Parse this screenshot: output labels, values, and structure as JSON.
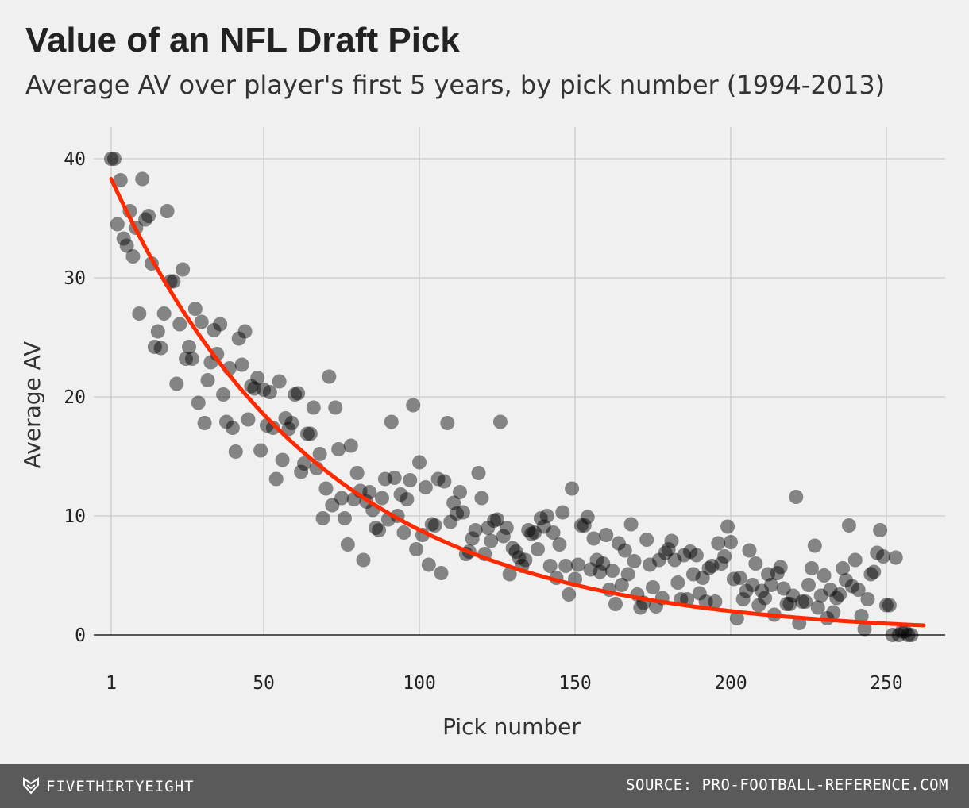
{
  "header": {
    "title": "Value of an NFL Draft Pick",
    "subtitle": "Average AV over player's first 5 years, by pick number (1994-2013)"
  },
  "footer": {
    "brand": "FIVETHIRTYEIGHT",
    "source": "SOURCE: PRO-FOOTBALL-REFERENCE.COM"
  },
  "colors": {
    "background": "#f0f0f0",
    "points": "#000000",
    "trend": "#ff2a00",
    "footer": "#5a5a5a"
  },
  "chart_data": {
    "type": "scatter",
    "title": "Value of an NFL Draft Pick",
    "subtitle": "Average AV over player's first 5 years, by pick number (1994-2013)",
    "xlabel": "Pick number",
    "ylabel": "Average AV",
    "xlim": [
      1,
      262
    ],
    "ylim": [
      0,
      40
    ],
    "xticks": [
      1,
      50,
      100,
      150,
      200,
      250
    ],
    "yticks": [
      0,
      10,
      20,
      30,
      40
    ],
    "grid": true,
    "trend_line": {
      "type": "exponential",
      "start": [
        1,
        38.3
      ],
      "end": [
        262,
        0.8
      ]
    },
    "points": [
      [
        1,
        40
      ],
      [
        2,
        40
      ],
      [
        3,
        34.5
      ],
      [
        4,
        38.2
      ],
      [
        5,
        33.3
      ],
      [
        6,
        32.7
      ],
      [
        7,
        35.6
      ],
      [
        8,
        31.8
      ],
      [
        9,
        34.2
      ],
      [
        10,
        27
      ],
      [
        11,
        38.3
      ],
      [
        12,
        34.9
      ],
      [
        13,
        35.2
      ],
      [
        14,
        31.2
      ],
      [
        15,
        24.2
      ],
      [
        16,
        25.5
      ],
      [
        17,
        24.1
      ],
      [
        18,
        27
      ],
      [
        19,
        35.6
      ],
      [
        20,
        29.7
      ],
      [
        21,
        29.7
      ],
      [
        22,
        21.1
      ],
      [
        23,
        26.1
      ],
      [
        24,
        30.7
      ],
      [
        25,
        23.2
      ],
      [
        26,
        24.2
      ],
      [
        27,
        23.2
      ],
      [
        28,
        27.4
      ],
      [
        29,
        19.5
      ],
      [
        30,
        26.3
      ],
      [
        31,
        17.8
      ],
      [
        32,
        21.4
      ],
      [
        33,
        22.9
      ],
      [
        34,
        25.6
      ],
      [
        35,
        23.6
      ],
      [
        36,
        26.1
      ],
      [
        37,
        20.2
      ],
      [
        38,
        17.9
      ],
      [
        39,
        22.4
      ],
      [
        40,
        17.4
      ],
      [
        41,
        15.4
      ],
      [
        42,
        24.9
      ],
      [
        43,
        22.7
      ],
      [
        44,
        25.5
      ],
      [
        45,
        18.1
      ],
      [
        46,
        20.9
      ],
      [
        47,
        20.7
      ],
      [
        48,
        21.6
      ],
      [
        49,
        15.5
      ],
      [
        50,
        20.6
      ],
      [
        51,
        17.6
      ],
      [
        52,
        20.4
      ],
      [
        53,
        17.4
      ],
      [
        54,
        13.1
      ],
      [
        55,
        21.3
      ],
      [
        56,
        14.7
      ],
      [
        57,
        18.2
      ],
      [
        58,
        17.3
      ],
      [
        59,
        17.8
      ],
      [
        60,
        20.2
      ],
      [
        61,
        20.3
      ],
      [
        62,
        13.7
      ],
      [
        63,
        14.4
      ],
      [
        64,
        16.9
      ],
      [
        65,
        16.9
      ],
      [
        66,
        19.1
      ],
      [
        67,
        14.0
      ],
      [
        68,
        15.2
      ],
      [
        69,
        9.8
      ],
      [
        70,
        12.3
      ],
      [
        71,
        21.7
      ],
      [
        72,
        10.9
      ],
      [
        73,
        19.1
      ],
      [
        74,
        15.6
      ],
      [
        75,
        11.5
      ],
      [
        76,
        9.8
      ],
      [
        77,
        7.6
      ],
      [
        78,
        15.9
      ],
      [
        79,
        11.4
      ],
      [
        80,
        13.6
      ],
      [
        81,
        12.1
      ],
      [
        82,
        6.3
      ],
      [
        83,
        11.2
      ],
      [
        84,
        12.0
      ],
      [
        85,
        10.5
      ],
      [
        86,
        9.0
      ],
      [
        87,
        8.8
      ],
      [
        88,
        11.5
      ],
      [
        89,
        13.1
      ],
      [
        90,
        9.7
      ],
      [
        91,
        17.9
      ],
      [
        92,
        13.2
      ],
      [
        93,
        10.0
      ],
      [
        94,
        11.8
      ],
      [
        95,
        8.6
      ],
      [
        96,
        11.4
      ],
      [
        97,
        13.0
      ],
      [
        98,
        19.3
      ],
      [
        99,
        7.2
      ],
      [
        100,
        14.5
      ],
      [
        101,
        8.4
      ],
      [
        102,
        12.4
      ],
      [
        103,
        5.9
      ],
      [
        104,
        9.3
      ],
      [
        105,
        9.2
      ],
      [
        106,
        13.1
      ],
      [
        107,
        5.2
      ],
      [
        108,
        12.9
      ],
      [
        109,
        17.8
      ],
      [
        110,
        9.5
      ],
      [
        111,
        11.1
      ],
      [
        112,
        10.2
      ],
      [
        113,
        12.0
      ],
      [
        114,
        10.3
      ],
      [
        115,
        6.8
      ],
      [
        116,
        7.0
      ],
      [
        117,
        8.1
      ],
      [
        118,
        8.8
      ],
      [
        119,
        13.6
      ],
      [
        120,
        11.5
      ],
      [
        121,
        6.8
      ],
      [
        122,
        9.0
      ],
      [
        123,
        7.9
      ],
      [
        124,
        9.6
      ],
      [
        125,
        9.7
      ],
      [
        126,
        17.9
      ],
      [
        127,
        8.3
      ],
      [
        128,
        9.0
      ],
      [
        129,
        5.1
      ],
      [
        130,
        7.3
      ],
      [
        131,
        7.0
      ],
      [
        132,
        6.5
      ],
      [
        133,
        5.8
      ],
      [
        134,
        6.3
      ],
      [
        135,
        8.8
      ],
      [
        136,
        8.5
      ],
      [
        137,
        8.6
      ],
      [
        138,
        7.2
      ],
      [
        139,
        9.8
      ],
      [
        140,
        9.1
      ],
      [
        141,
        10.0
      ],
      [
        142,
        5.8
      ],
      [
        143,
        8.6
      ],
      [
        144,
        4.8
      ],
      [
        145,
        7.6
      ],
      [
        146,
        10.3
      ],
      [
        147,
        5.8
      ],
      [
        148,
        3.4
      ],
      [
        149,
        12.3
      ],
      [
        150,
        4.7
      ],
      [
        151,
        5.9
      ],
      [
        152,
        9.2
      ],
      [
        153,
        9.2
      ],
      [
        154,
        9.9
      ],
      [
        155,
        5.5
      ],
      [
        156,
        8.1
      ],
      [
        157,
        6.3
      ],
      [
        158,
        5.3
      ],
      [
        159,
        6.0
      ],
      [
        160,
        8.4
      ],
      [
        161,
        3.8
      ],
      [
        162,
        5.4
      ],
      [
        163,
        2.6
      ],
      [
        164,
        7.7
      ],
      [
        165,
        4.2
      ],
      [
        166,
        7.1
      ],
      [
        167,
        5.1
      ],
      [
        168,
        9.3
      ],
      [
        169,
        6.2
      ],
      [
        170,
        3.4
      ],
      [
        171,
        2.3
      ],
      [
        172,
        2.7
      ],
      [
        173,
        8.0
      ],
      [
        174,
        5.9
      ],
      [
        175,
        4.0
      ],
      [
        176,
        2.4
      ],
      [
        177,
        6.3
      ],
      [
        178,
        3.1
      ],
      [
        179,
        6.9
      ],
      [
        180,
        7.2
      ],
      [
        181,
        7.9
      ],
      [
        182,
        6.3
      ],
      [
        183,
        4.4
      ],
      [
        184,
        3.0
      ],
      [
        185,
        6.7
      ],
      [
        186,
        3.0
      ],
      [
        187,
        7.0
      ],
      [
        188,
        5.1
      ],
      [
        189,
        6.7
      ],
      [
        190,
        3.5
      ],
      [
        191,
        4.8
      ],
      [
        192,
        2.8
      ],
      [
        193,
        5.6
      ],
      [
        194,
        5.8
      ],
      [
        195,
        2.8
      ],
      [
        196,
        7.7
      ],
      [
        197,
        6.0
      ],
      [
        198,
        6.6
      ],
      [
        199,
        9.1
      ],
      [
        200,
        7.8
      ],
      [
        201,
        4.7
      ],
      [
        202,
        1.4
      ],
      [
        203,
        4.8
      ],
      [
        204,
        3.0
      ],
      [
        205,
        3.7
      ],
      [
        206,
        7.1
      ],
      [
        207,
        4.2
      ],
      [
        208,
        6.0
      ],
      [
        209,
        2.5
      ],
      [
        210,
        3.7
      ],
      [
        211,
        3.1
      ],
      [
        212,
        5.1
      ],
      [
        213,
        4.2
      ],
      [
        214,
        1.7
      ],
      [
        215,
        5.2
      ],
      [
        216,
        5.7
      ],
      [
        217,
        3.9
      ],
      [
        218,
        2.6
      ],
      [
        219,
        2.6
      ],
      [
        220,
        3.3
      ],
      [
        221,
        11.6
      ],
      [
        222,
        1.0
      ],
      [
        223,
        2.8
      ],
      [
        224,
        2.8
      ],
      [
        225,
        4.2
      ],
      [
        226,
        5.6
      ],
      [
        227,
        7.5
      ],
      [
        228,
        2.3
      ],
      [
        229,
        3.3
      ],
      [
        230,
        5.0
      ],
      [
        231,
        1.4
      ],
      [
        232,
        3.8
      ],
      [
        233,
        1.9
      ],
      [
        234,
        3.1
      ],
      [
        235,
        3.4
      ],
      [
        236,
        5.6
      ],
      [
        237,
        4.6
      ],
      [
        238,
        9.2
      ],
      [
        239,
        4.1
      ],
      [
        240,
        6.3
      ],
      [
        241,
        3.8
      ],
      [
        242,
        1.6
      ],
      [
        243,
        0.5
      ],
      [
        244,
        3.0
      ],
      [
        245,
        5.1
      ],
      [
        246,
        5.3
      ],
      [
        247,
        6.9
      ],
      [
        248,
        8.8
      ],
      [
        249,
        6.6
      ],
      [
        250,
        2.5
      ],
      [
        251,
        2.5
      ],
      [
        252,
        0
      ],
      [
        253,
        6.5
      ],
      [
        254,
        0
      ],
      [
        255,
        0.3
      ],
      [
        256,
        0.3
      ],
      [
        257,
        0
      ],
      [
        258,
        0
      ]
    ]
  }
}
